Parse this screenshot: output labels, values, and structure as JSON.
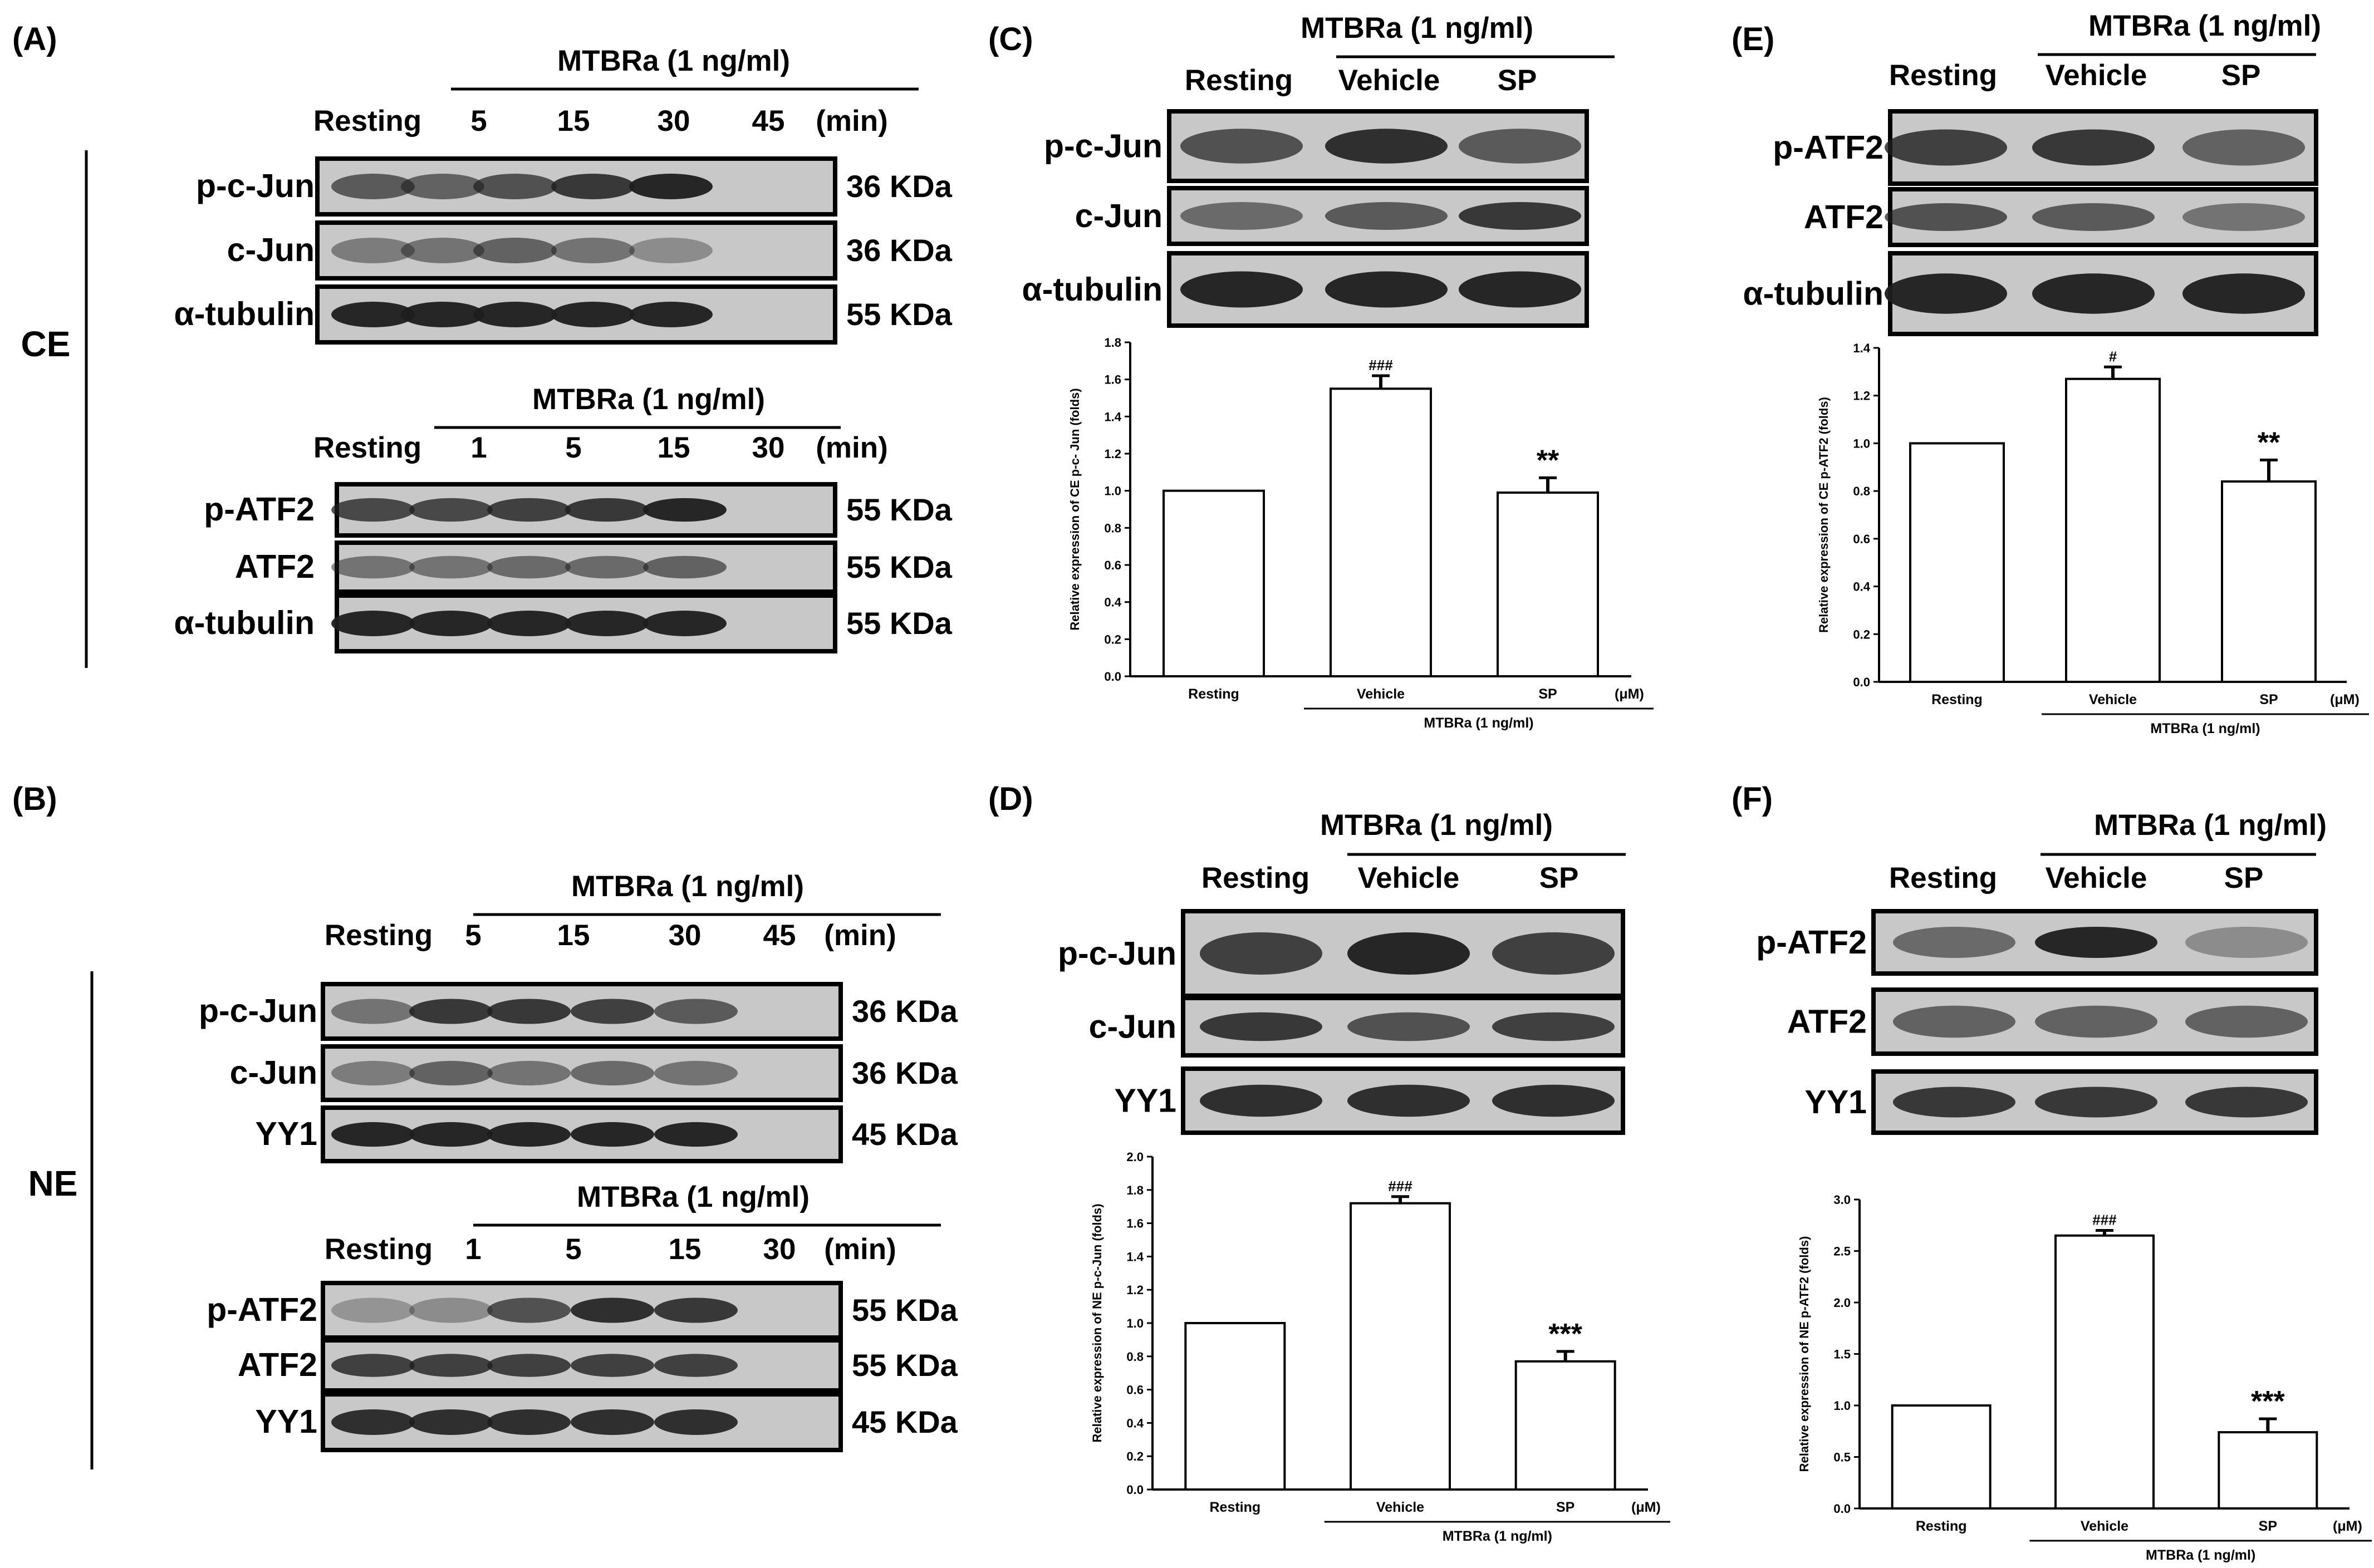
{
  "colors": {
    "ink": "#000000",
    "paper": "#ffffff",
    "blot_bg": "#c8c8c8",
    "band": "#1e1e1e"
  },
  "panel_A": {
    "label": "(A)",
    "side_label": "CE",
    "treatment": "MTBRa (1 ng/ml)",
    "group1": {
      "lanes": [
        "Resting",
        "5",
        "15",
        "30",
        "45",
        "(min)"
      ],
      "rows": [
        {
          "name": "p-c-Jun",
          "kda": "36 KDa"
        },
        {
          "name": "c-Jun",
          "kda": "36 KDa"
        },
        {
          "name": "α-tubulin",
          "kda": "55 KDa"
        }
      ]
    },
    "group2": {
      "lanes": [
        "Resting",
        "1",
        "5",
        "15",
        "30",
        "(min)"
      ],
      "rows": [
        {
          "name": "p-ATF2",
          "kda": "55 KDa"
        },
        {
          "name": "ATF2",
          "kda": "55 KDa"
        },
        {
          "name": "α-tubulin",
          "kda": "55 KDa"
        }
      ]
    }
  },
  "panel_B": {
    "label": "(B)",
    "side_label": "NE",
    "treatment": "MTBRa (1 ng/ml)",
    "group1": {
      "lanes": [
        "Resting",
        "5",
        "15",
        "30",
        "45",
        "(min)"
      ],
      "rows": [
        {
          "name": "p-c-Jun",
          "kda": "36 KDa"
        },
        {
          "name": "c-Jun",
          "kda": "36 KDa"
        },
        {
          "name": "YY1",
          "kda": "45 KDa"
        }
      ]
    },
    "group2": {
      "lanes": [
        "Resting",
        "1",
        "5",
        "15",
        "30",
        "(min)"
      ],
      "rows": [
        {
          "name": "p-ATF2",
          "kda": "55 KDa"
        },
        {
          "name": "ATF2",
          "kda": "55 KDa"
        },
        {
          "name": "YY1",
          "kda": "45 KDa"
        }
      ]
    }
  },
  "panel_C": {
    "label": "(C)",
    "treatment": "MTBRa (1 ng/ml)",
    "lanes": [
      "Resting",
      "Vehicle",
      "SP"
    ],
    "rows": [
      "p-c-Jun",
      "c-Jun",
      "α-tubulin"
    ]
  },
  "panel_D": {
    "label": "(D)",
    "treatment": "MTBRa (1 ng/ml)",
    "lanes": [
      "Resting",
      "Vehicle",
      "SP"
    ],
    "rows": [
      "p-c-Jun",
      "c-Jun",
      "YY1"
    ]
  },
  "panel_E": {
    "label": "(E)",
    "treatment": "MTBRa (1 ng/ml)",
    "lanes": [
      "Resting",
      "Vehicle",
      "SP"
    ],
    "rows": [
      "p-ATF2",
      "ATF2",
      "α-tubulin"
    ]
  },
  "panel_F": {
    "label": "(F)",
    "treatment": "MTBRa (1 ng/ml)",
    "lanes": [
      "Resting",
      "Vehicle",
      "SP"
    ],
    "rows": [
      "p-ATF2",
      "ATF2",
      "YY1"
    ]
  },
  "chart_data": [
    {
      "panel": "C",
      "type": "bar",
      "categories": [
        "Resting",
        "Vehicle",
        "SP"
      ],
      "values": [
        1.0,
        1.55,
        0.99
      ],
      "errors": [
        0,
        0.07,
        0.08
      ],
      "annotations": [
        "",
        "###",
        "**"
      ],
      "ylabel": "Relative expression of CE p-c- Jun (folds)",
      "ylim": [
        0.0,
        1.8
      ],
      "yticks": [
        "0.0",
        "0.2",
        "0.4",
        "0.6",
        "0.8",
        "1.0",
        "1.2",
        "1.4",
        "1.6",
        "1.8"
      ],
      "unit": "(μM)",
      "group_label": "MTBRa (1 ng/ml)"
    },
    {
      "panel": "D",
      "type": "bar",
      "categories": [
        "Resting",
        "Vehicle",
        "SP"
      ],
      "values": [
        1.0,
        1.72,
        0.77
      ],
      "errors": [
        0,
        0.04,
        0.06
      ],
      "annotations": [
        "",
        "###",
        "***"
      ],
      "ylabel": "Relative expression of NE p-c-Jun (folds)",
      "ylim": [
        0.0,
        2.0
      ],
      "yticks": [
        "0.0",
        "0.2",
        "0.4",
        "0.6",
        "0.8",
        "1.0",
        "1.2",
        "1.4",
        "1.6",
        "1.8",
        "2.0"
      ],
      "unit": "(μM)",
      "group_label": "MTBRa (1 ng/ml)"
    },
    {
      "panel": "E",
      "type": "bar",
      "categories": [
        "Resting",
        "Vehicle",
        "SP"
      ],
      "values": [
        1.0,
        1.27,
        0.84
      ],
      "errors": [
        0,
        0.05,
        0.09
      ],
      "annotations": [
        "",
        "#",
        "**"
      ],
      "ylabel": "Relative expression of CE p-ATF2 (folds)",
      "ylim": [
        0.0,
        1.4
      ],
      "yticks": [
        "0.0",
        "0.2",
        "0.4",
        "0.6",
        "0.8",
        "1.0",
        "1.2",
        "1.4"
      ],
      "unit": "(μM)",
      "group_label": "MTBRa  (1 ng/ml)"
    },
    {
      "panel": "F",
      "type": "bar",
      "categories": [
        "Resting",
        "Vehicle",
        "SP"
      ],
      "values": [
        1.0,
        2.65,
        0.74
      ],
      "errors": [
        0,
        0.05,
        0.13
      ],
      "annotations": [
        "",
        "###",
        "***"
      ],
      "ylabel": "Relative expression of NE p-ATF2 (folds)",
      "ylim": [
        0.0,
        3.0
      ],
      "yticks": [
        "0.0",
        "0.5",
        "1.0",
        "1.5",
        "2.0",
        "2.5",
        "3.0"
      ],
      "unit": "(μM)",
      "group_label": "MTBRa (1 ng/ml)"
    }
  ]
}
